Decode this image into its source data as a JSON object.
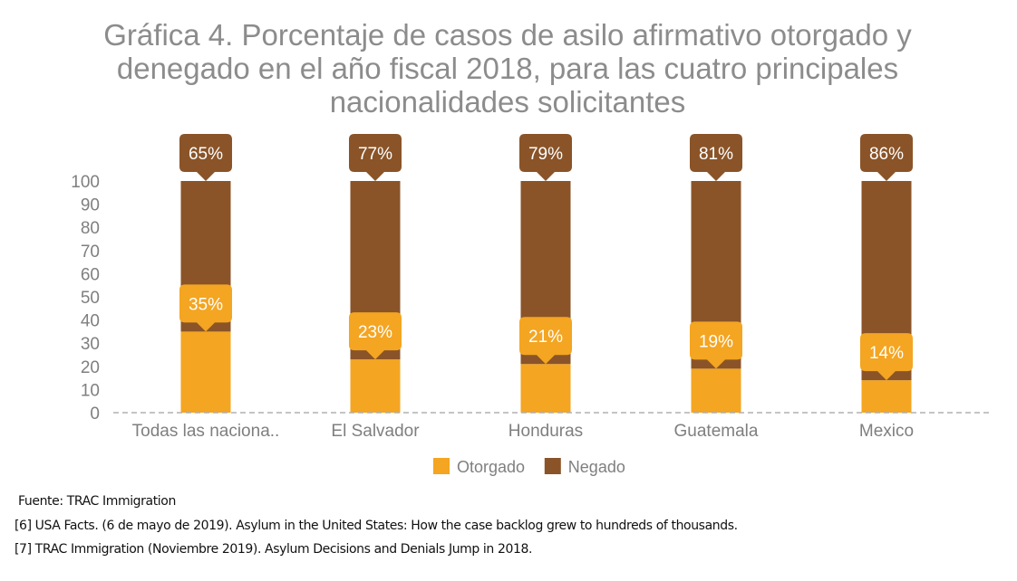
{
  "chart_data": {
    "type": "bar",
    "stacked": true,
    "title": "Gráfica 4. Porcentaje de casos de asilo afirmativo otorgado y denegado en el año fiscal 2018, para las cuatro principales nacionalidades solicitantes",
    "categories": [
      "Todas las naciona..",
      "El Salvador",
      "Honduras",
      "Guatemala",
      "Mexico"
    ],
    "series": [
      {
        "name": "Otorgado",
        "color": "#f4a521",
        "values": [
          35,
          23,
          21,
          19,
          14
        ],
        "labels": [
          "35%",
          "23%",
          "21%",
          "19%",
          "14%"
        ]
      },
      {
        "name": "Negado",
        "color": "#8a5428",
        "values": [
          65,
          77,
          79,
          81,
          86
        ],
        "labels": [
          "65%",
          "77%",
          "79%",
          "81%",
          "86%"
        ]
      }
    ],
    "yticks": [
      "0",
      "10",
      "20",
      "30",
      "40",
      "50",
      "60",
      "70",
      "80",
      "90",
      "100"
    ],
    "ylim": [
      0,
      100
    ],
    "legend_position": "bottom"
  },
  "notes": {
    "source": "Fuente: TRAC Immigration",
    "ref6": "[6] USA Facts. (6 de mayo de 2019). Asylum in the United States: How the case backlog grew to hundreds of thousands.",
    "ref7": "[7] TRAC Immigration (Noviembre 2019). Asylum Decisions and Denials Jump in 2018."
  }
}
